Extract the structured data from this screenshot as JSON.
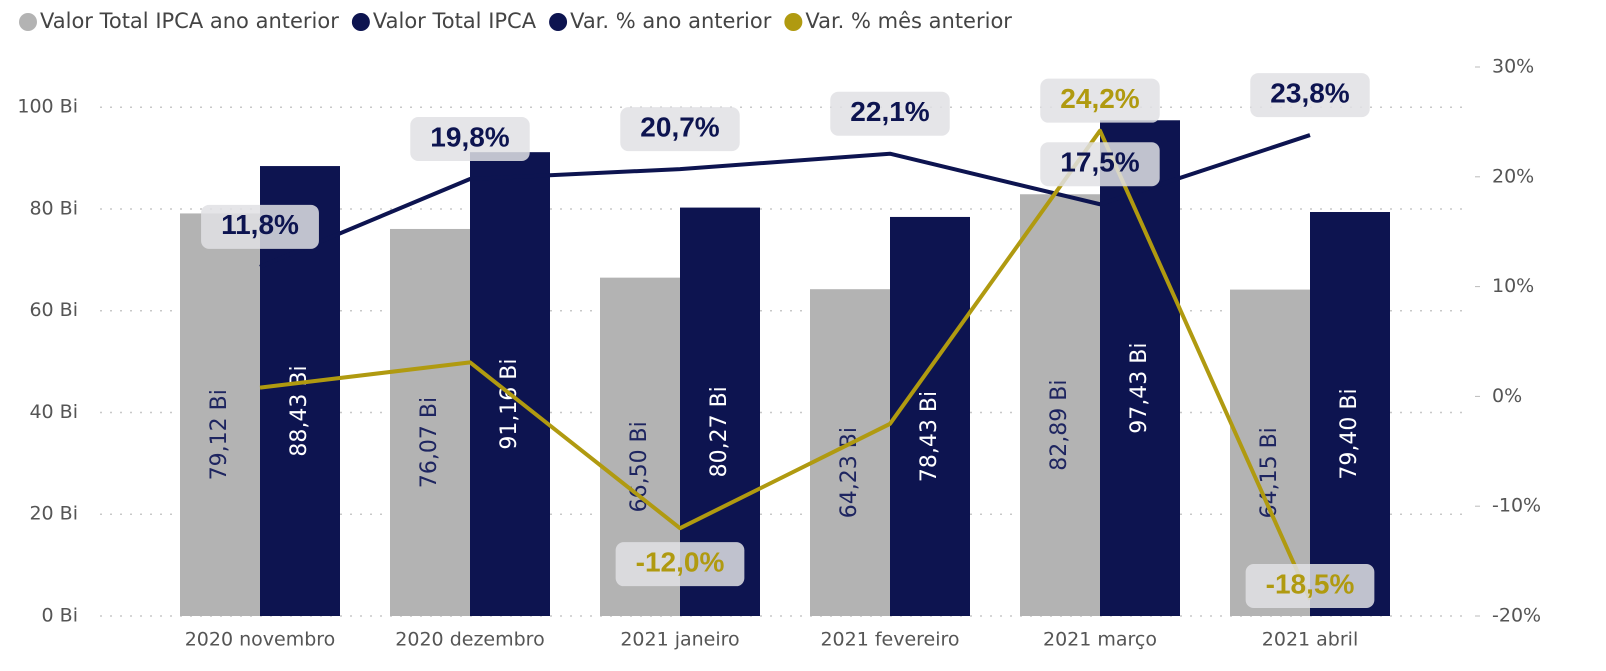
{
  "chart_data": {
    "type": "bar",
    "categories": [
      "2020 novembro",
      "2020 dezembro",
      "2021 janeiro",
      "2021 fevereiro",
      "2021 março",
      "2021 abril"
    ],
    "series": [
      {
        "name": "Valor Total IPCA ano anterior",
        "color": "#b3b3b3",
        "type": "bar",
        "values": [
          79.12,
          76.07,
          66.5,
          64.23,
          82.89,
          64.15
        ],
        "value_labels": [
          "79,12 Bi",
          "76,07 Bi",
          "66,50 Bi",
          "64,23 Bi",
          "82,89 Bi",
          "64,15 Bi"
        ]
      },
      {
        "name": "Valor Total IPCA",
        "color": "#0d1450",
        "type": "bar",
        "values": [
          88.43,
          91.16,
          80.27,
          78.43,
          97.43,
          79.4
        ],
        "value_labels": [
          "88,43 Bi",
          "91,16 Bi",
          "80,27 Bi",
          "78,43 Bi",
          "97,43 Bi",
          "79,40 Bi"
        ]
      },
      {
        "name": "Var. % ano anterior",
        "color": "#0d1450",
        "type": "line",
        "axis": "y2",
        "values": [
          11.8,
          19.8,
          20.7,
          22.1,
          17.5,
          23.8
        ],
        "value_labels": [
          "11,8%",
          "19,8%",
          "20,7%",
          "22,1%",
          "17,5%",
          "23,8%"
        ]
      },
      {
        "name": "Var. % mês anterior",
        "color": "#b09a10",
        "type": "line",
        "axis": "y2",
        "values": [
          0.8,
          3.1,
          -12.0,
          -2.5,
          24.2,
          -18.5
        ],
        "value_labels": [
          null,
          null,
          "-12,0%",
          null,
          "24,2%",
          "-18,5%"
        ]
      }
    ],
    "ylim": [
      0,
      107.9
    ],
    "yticks": [
      {
        "value": 0,
        "label": "0 Bi"
      },
      {
        "value": 20,
        "label": "20 Bi"
      },
      {
        "value": 40,
        "label": "40 Bi"
      },
      {
        "value": 60,
        "label": "60 Bi"
      },
      {
        "value": 80,
        "label": "80 Bi"
      },
      {
        "value": 100,
        "label": "100 Bi"
      }
    ],
    "y2lim": [
      -20,
      30
    ],
    "y2ticks": [
      {
        "value": -20,
        "label": "-20%"
      },
      {
        "value": -10,
        "label": "-10%"
      },
      {
        "value": 0,
        "label": "0%"
      },
      {
        "value": 10,
        "label": "10%"
      },
      {
        "value": 20,
        "label": "20%"
      },
      {
        "value": 30,
        "label": "30%"
      }
    ],
    "grid": true,
    "legend": "top"
  }
}
